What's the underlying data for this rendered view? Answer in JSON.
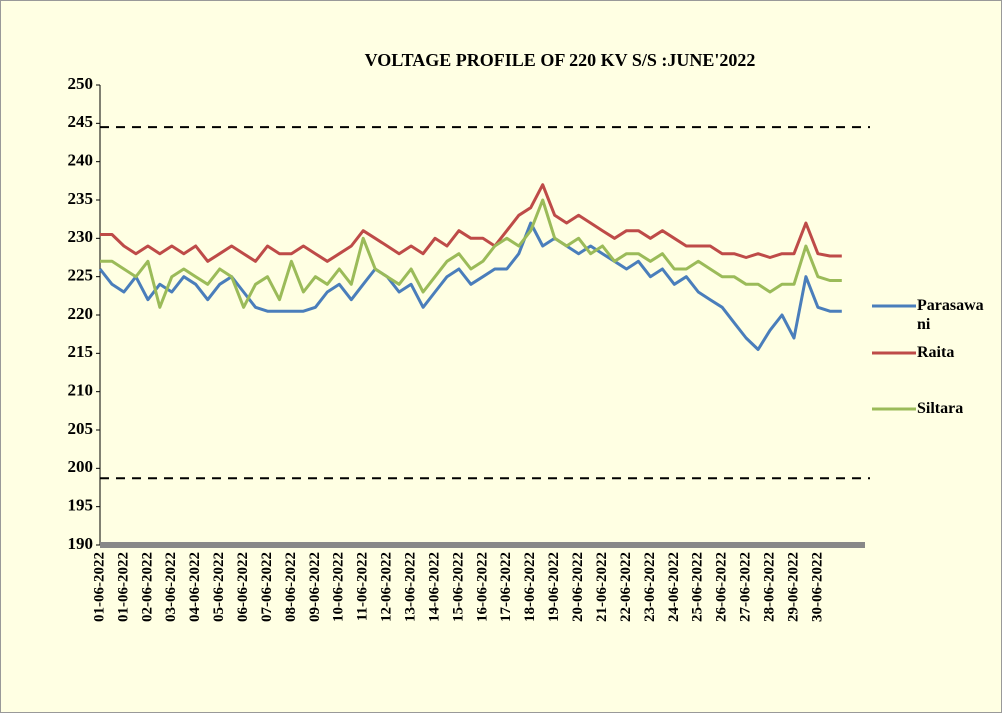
{
  "chart_data": {
    "type": "line",
    "title": "VOLTAGE PROFILE OF 220 KV S/S :JUNE'2022",
    "categories": [
      "01-06-2022",
      null,
      "01-06-2022",
      null,
      "02-06-2022",
      null,
      "03-06-2022",
      null,
      "04-06-2022",
      null,
      "05-06-2022",
      null,
      "06-06-2022",
      null,
      "07-06-2022",
      null,
      "08-06-2022",
      null,
      "09-06-2022",
      null,
      "10-06-2022",
      null,
      "11-06-2022",
      null,
      "12-06-2022",
      null,
      "13-06-2022",
      null,
      "14-06-2022",
      null,
      "15-06-2022",
      null,
      "16-06-2022",
      null,
      "17-06-2022",
      null,
      "18-06-2022",
      null,
      "19-06-2022",
      null,
      "20-06-2022",
      null,
      "21-06-2022",
      null,
      "22-06-2022",
      null,
      "23-06-2022",
      null,
      "24-06-2022",
      null,
      "25-06-2022",
      null,
      "26-06-2022",
      null,
      "27-06-2022",
      null,
      "28-06-2022",
      null,
      "29-06-2022",
      null,
      "30-06-2022",
      null,
      null
    ],
    "series": [
      {
        "name": "Parasawani",
        "color": "#4a7ebb",
        "values": [
          226,
          224,
          223,
          225,
          222,
          224,
          223,
          225,
          224,
          222,
          224,
          225,
          223,
          221,
          220.5,
          220.5,
          220.5,
          220.5,
          221,
          223,
          224,
          222,
          224,
          226,
          225,
          223,
          224,
          221,
          223,
          225,
          226,
          224,
          225,
          226,
          226,
          228,
          232,
          229,
          230,
          229,
          228,
          229,
          228,
          227,
          226,
          227,
          225,
          226,
          224,
          225,
          223,
          222,
          221,
          219,
          217,
          215.5,
          218,
          220,
          217,
          225,
          221,
          220.5,
          220.5
        ]
      },
      {
        "name": "Raita",
        "color": "#be4b48",
        "values": [
          230.5,
          230.5,
          229,
          228,
          229,
          228,
          229,
          228,
          229,
          227,
          228,
          229,
          228,
          227,
          229,
          228,
          228,
          229,
          228,
          227,
          228,
          229,
          231,
          230,
          229,
          228,
          229,
          228,
          230,
          229,
          231,
          230,
          230,
          229,
          231,
          233,
          234,
          237,
          233,
          232,
          233,
          232,
          231,
          230,
          231,
          231,
          230,
          231,
          230,
          229,
          229,
          229,
          228,
          228,
          227.5,
          228,
          227.5,
          228,
          228,
          232,
          228,
          227.7,
          227.7
        ]
      },
      {
        "name": "Siltara",
        "color": "#9bbb59",
        "values": [
          227,
          227,
          226,
          225,
          227,
          221,
          225,
          226,
          225,
          224,
          226,
          225,
          221,
          224,
          225,
          222,
          227,
          223,
          225,
          224,
          226,
          224,
          230,
          226,
          225,
          224,
          226,
          223,
          225,
          227,
          228,
          226,
          227,
          229,
          230,
          229,
          231,
          235,
          230,
          229,
          230,
          228,
          229,
          227,
          228,
          228,
          227,
          228,
          226,
          226,
          227,
          226,
          225,
          225,
          224,
          224,
          223,
          224,
          224,
          229,
          225,
          224.5,
          224.5
        ]
      }
    ],
    "reference_lines": [
      244.5,
      198.7
    ],
    "ylim": [
      190,
      250
    ],
    "yticks": [
      190,
      195,
      200,
      205,
      210,
      215,
      220,
      225,
      230,
      235,
      240,
      245,
      250
    ]
  }
}
